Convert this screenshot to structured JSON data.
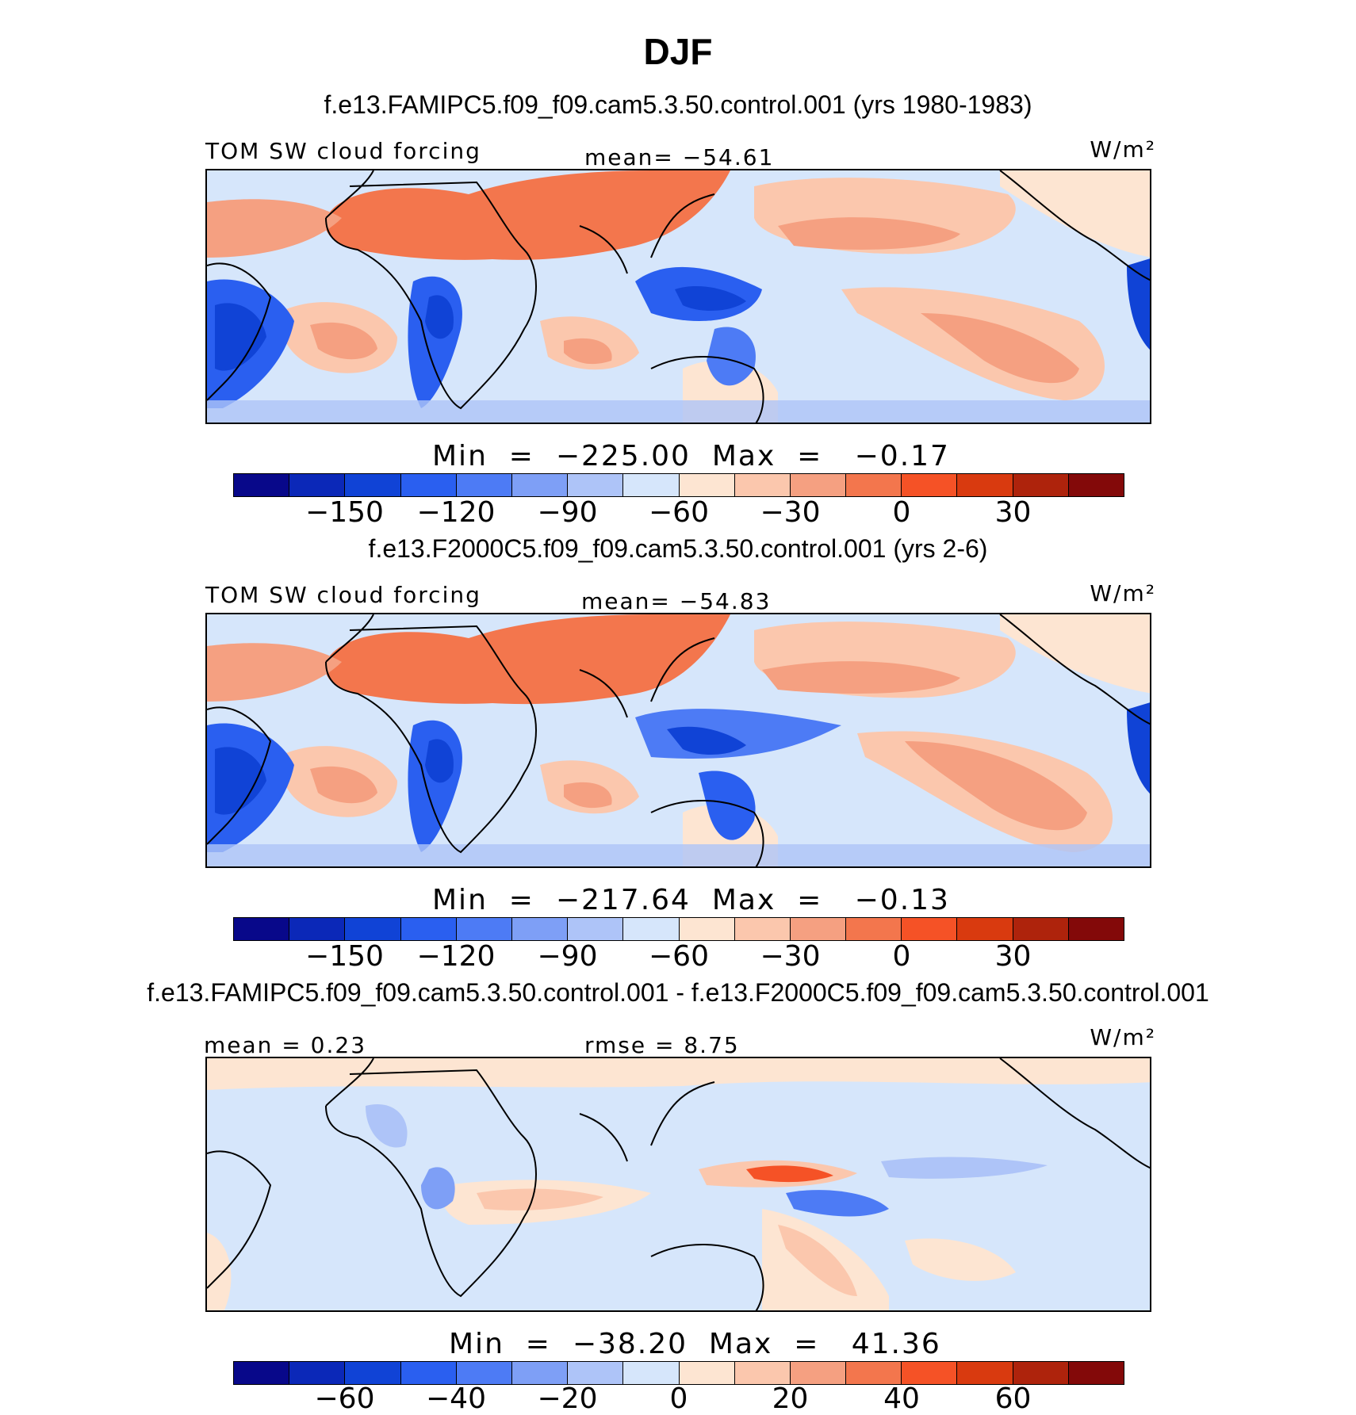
{
  "title": "DJF",
  "colors": [
    "#08088a",
    "#0b28b8",
    "#1043d6",
    "#2a5ff0",
    "#4d7bf5",
    "#7e9ff6",
    "#aec4f8",
    "#d6e6fb",
    "#fde5d2",
    "#fbc7ad",
    "#f5a081",
    "#f3764d",
    "#f55226",
    "#d93a0f",
    "#ae230c",
    "#830909"
  ],
  "panels": [
    {
      "case_title": "f.e13.FAMIPC5.f09_f09.cam5.3.50.control.001 (yrs 1980-1983)",
      "left_label": "TOM SW cloud forcing",
      "center_label": "mean= −54.61",
      "units_label": "W/m²",
      "minmax": "Min  =  −225.00  Max  =   −0.17",
      "ticks": [
        "−150",
        "−120",
        "−90",
        "−60",
        "−30",
        "0",
        "30"
      ]
    },
    {
      "case_title": "f.e13.F2000C5.f09_f09.cam5.3.50.control.001 (yrs 2-6)",
      "left_label": "TOM SW cloud forcing",
      "center_label": "mean= −54.83",
      "units_label": "W/m²",
      "minmax": "Min  =  −217.64  Max  =   −0.13",
      "ticks": [
        "−150",
        "−120",
        "−90",
        "−60",
        "−30",
        "0",
        "30"
      ]
    },
    {
      "case_title": "f.e13.FAMIPC5.f09_f09.cam5.3.50.control.001 - f.e13.F2000C5.f09_f09.cam5.3.50.control.001",
      "left_label": "mean  =    0.23",
      "center_label": "rmse  =    8.75",
      "units_label": "W/m²",
      "minmax": "Min  =  −38.20  Max  =   41.36",
      "ticks": [
        "−60",
        "−40",
        "−20",
        "0",
        "20",
        "40",
        "60"
      ]
    }
  ]
}
